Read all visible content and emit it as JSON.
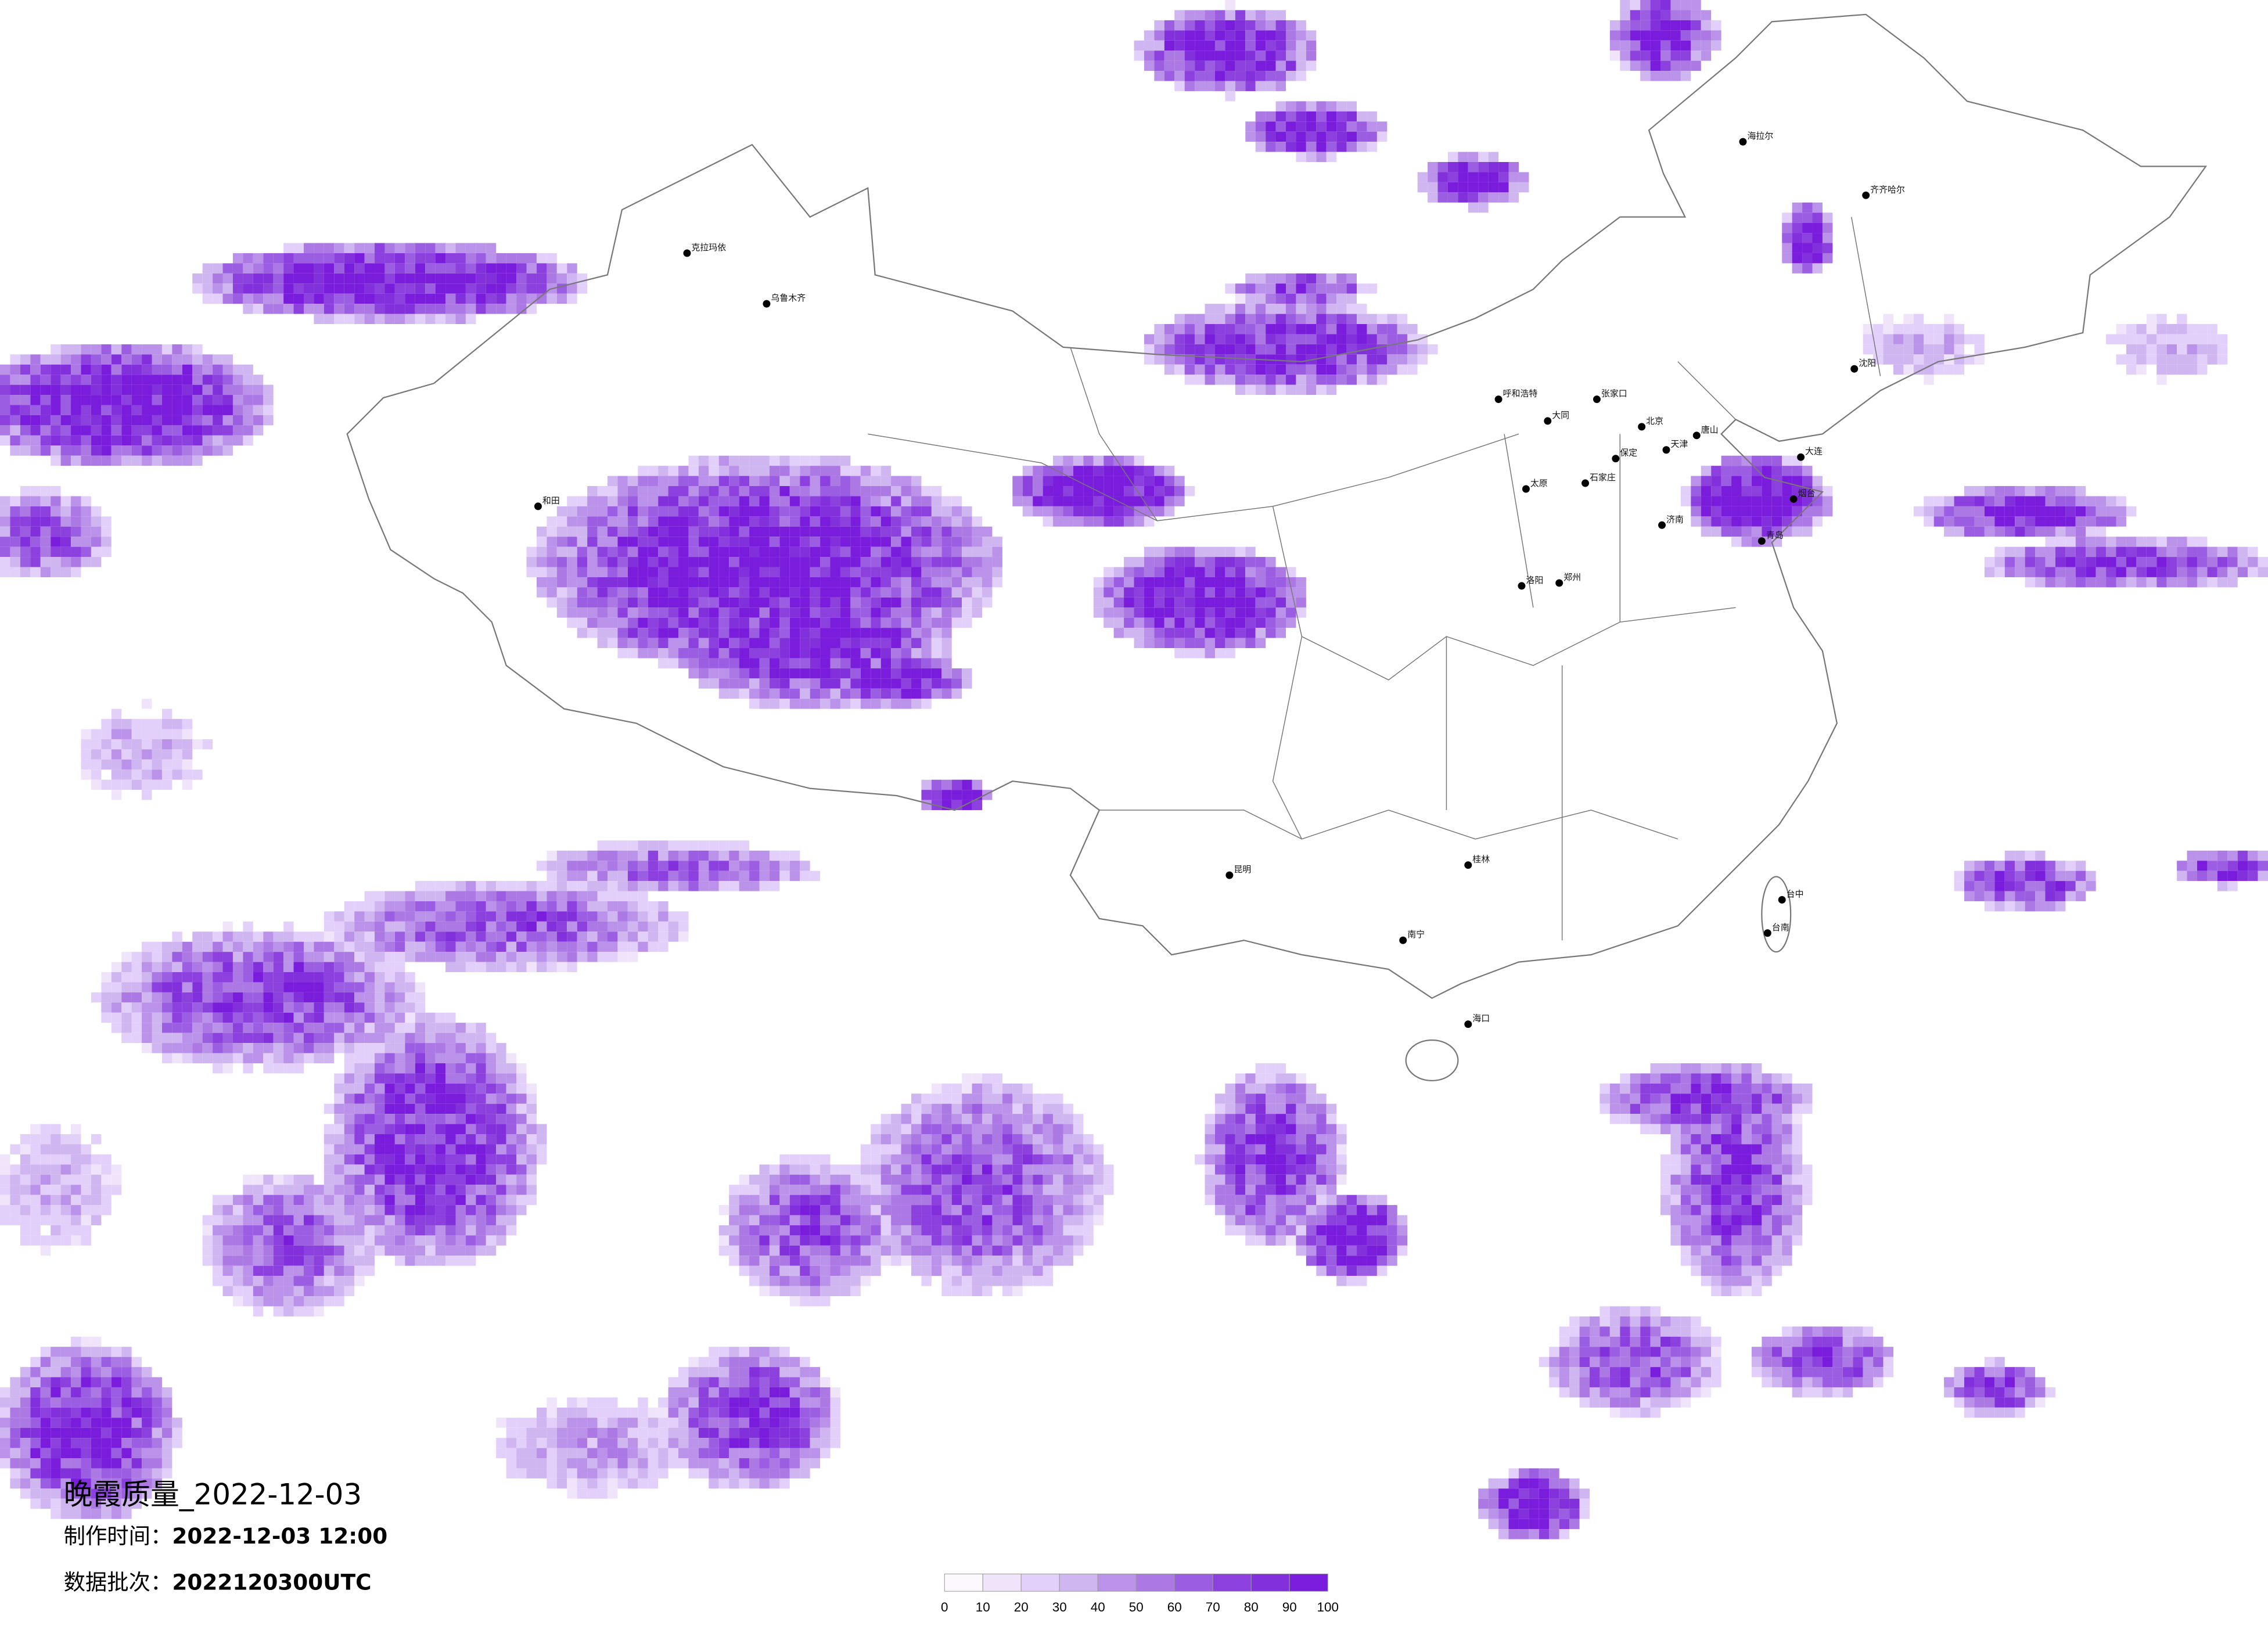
{
  "title": "晚霞质量_2022-12-03",
  "production_time_label": "制作时间：",
  "production_time": "2022-12-03 12:00",
  "data_batch_label": "数据批次：",
  "data_batch": "2022120300UTC",
  "colorbar": {
    "ticks": [
      "0",
      "10",
      "20",
      "30",
      "40",
      "50",
      "60",
      "70",
      "80",
      "90",
      "100"
    ],
    "colors": [
      "#fdf8fd",
      "#f0e4fa",
      "#e3d0fa",
      "#d0b6f0",
      "#bb92ea",
      "#ac78e4",
      "#9b5ee2",
      "#8c40dd",
      "#8230dc",
      "#7a1cdc"
    ]
  },
  "cities": [
    "北京",
    "天津",
    "石家庄",
    "张家口",
    "呼和浩特",
    "大同",
    "太原",
    "济南",
    "青岛",
    "大连",
    "郑州",
    "沈阳",
    "唐山",
    "烟台",
    "洛阳",
    "保定",
    "克拉玛依",
    "乌鲁木齐",
    "和田",
    "齐齐哈尔",
    "海拉尔",
    "台中",
    "台南",
    "海口",
    "南宁",
    "桂林",
    "昆明"
  ],
  "colors": {
    "boundary": "#777777",
    "city_dot": "#000000",
    "background": "#ffffff"
  }
}
